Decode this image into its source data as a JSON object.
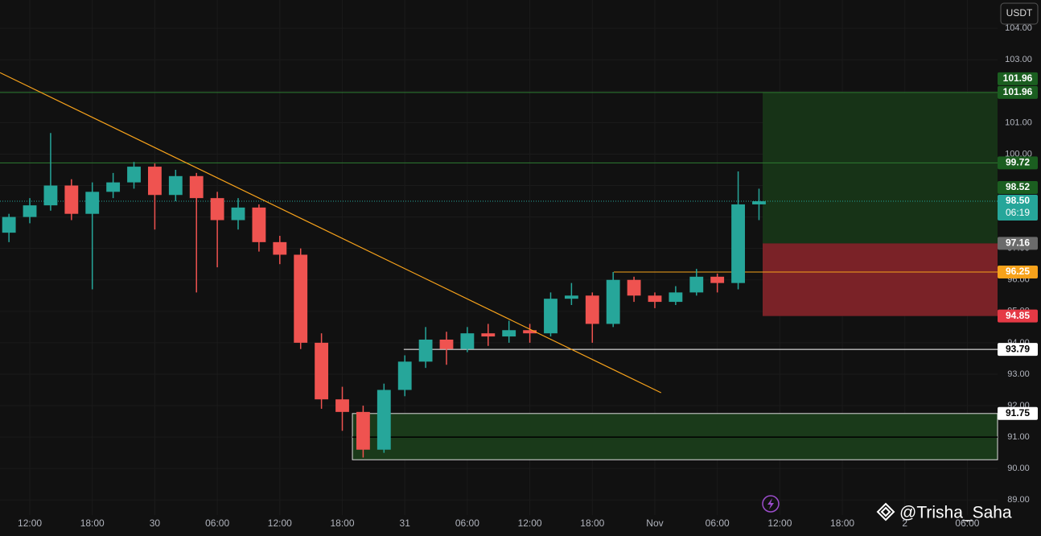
{
  "chart_data": {
    "type": "candlestick",
    "x": [
      -2,
      0,
      2,
      4,
      6,
      8,
      10,
      12,
      14,
      16,
      18,
      20,
      22,
      24,
      26,
      28,
      30,
      32,
      34,
      36,
      38,
      40,
      42,
      44,
      46,
      48,
      50,
      52,
      54,
      56,
      58,
      60,
      62,
      64,
      66,
      68,
      70
    ],
    "open": [
      97.5,
      98.0,
      98.37,
      99.0,
      98.1,
      98.8,
      99.1,
      99.6,
      98.7,
      99.3,
      98.6,
      97.9,
      98.3,
      97.2,
      96.8,
      94.0,
      92.2,
      91.8,
      90.6,
      92.5,
      93.4,
      94.1,
      93.8,
      94.3,
      94.2,
      94.4,
      94.3,
      95.4,
      95.5,
      94.6,
      96.0,
      95.5,
      95.3,
      95.6,
      96.1,
      95.9,
      98.4
    ],
    "high": [
      98.1,
      98.6,
      100.67,
      99.2,
      99.1,
      99.4,
      99.75,
      99.7,
      99.5,
      99.4,
      98.8,
      98.6,
      98.4,
      97.4,
      97.0,
      94.3,
      92.6,
      92.0,
      92.7,
      93.6,
      94.5,
      94.35,
      94.5,
      94.6,
      94.7,
      94.6,
      95.6,
      95.9,
      95.6,
      96.25,
      96.1,
      95.6,
      95.8,
      96.35,
      96.2,
      99.45,
      98.9
    ],
    "low": [
      97.2,
      97.8,
      98.2,
      97.9,
      95.7,
      98.6,
      98.9,
      97.6,
      98.5,
      95.6,
      96.4,
      97.6,
      96.9,
      96.5,
      93.8,
      91.9,
      91.2,
      90.35,
      90.5,
      92.3,
      93.2,
      93.3,
      93.7,
      93.9,
      94.0,
      94.0,
      94.2,
      95.2,
      94.0,
      94.5,
      95.3,
      95.1,
      95.2,
      95.5,
      95.6,
      95.7,
      97.9
    ],
    "close": [
      98.0,
      98.37,
      99.0,
      98.1,
      98.8,
      99.1,
      99.6,
      98.7,
      99.3,
      98.6,
      97.9,
      98.3,
      97.2,
      96.8,
      94.0,
      92.2,
      91.8,
      90.6,
      92.5,
      93.4,
      94.1,
      93.8,
      94.3,
      94.2,
      94.4,
      94.3,
      95.4,
      95.5,
      94.6,
      96.0,
      95.5,
      95.3,
      95.6,
      96.1,
      95.9,
      98.4,
      98.5
    ],
    "up_color": "#26a69a",
    "down_color": "#ef5350",
    "xlim": [
      -2.86,
      92.9
    ],
    "ylim": [
      88.52,
      104.9
    ],
    "xticks": [
      {
        "value": 0,
        "label": "12:00"
      },
      {
        "value": 6,
        "label": "18:00"
      },
      {
        "value": 12,
        "label": "30"
      },
      {
        "value": 18,
        "label": "06:00"
      },
      {
        "value": 24,
        "label": "12:00"
      },
      {
        "value": 30,
        "label": "18:00"
      },
      {
        "value": 36,
        "label": "31"
      },
      {
        "value": 42,
        "label": "06:00"
      },
      {
        "value": 48,
        "label": "12:00"
      },
      {
        "value": 54,
        "label": "18:00"
      },
      {
        "value": 60,
        "label": "Nov"
      },
      {
        "value": 66,
        "label": "06:00"
      },
      {
        "value": 72,
        "label": "12:00"
      },
      {
        "value": 78,
        "label": "18:00"
      },
      {
        "value": 84,
        "label": "2"
      },
      {
        "value": 90,
        "label": "06:00"
      }
    ],
    "yticks": [
      {
        "value": 89,
        "label": "89.00"
      },
      {
        "value": 90,
        "label": "90.00"
      },
      {
        "value": 91,
        "label": "91.00"
      },
      {
        "value": 92,
        "label": "92.00"
      },
      {
        "value": 93,
        "label": "93.00"
      },
      {
        "value": 94,
        "label": "94.00"
      },
      {
        "value": 95,
        "label": "95.00"
      },
      {
        "value": 96,
        "label": "96.00"
      },
      {
        "value": 97,
        "label": "97.00"
      },
      {
        "value": 98,
        "label": "98.00"
      },
      {
        "value": 99,
        "label": "99.00"
      },
      {
        "value": 100,
        "label": "100.00"
      },
      {
        "value": 101,
        "label": "101.00"
      },
      {
        "value": 102,
        "label": "102.00"
      },
      {
        "value": 103,
        "label": "103.00"
      },
      {
        "value": 104,
        "label": "104.00"
      }
    ],
    "grid": true,
    "currency": "USDT",
    "trendline": {
      "x": [
        -2.86,
        60.6
      ],
      "y": [
        102.59,
        92.41
      ],
      "color": "#f7a21b"
    },
    "levels": [
      {
        "value": 101.96,
        "from": -2.86,
        "color": "#2e7d32",
        "dashed": false
      },
      {
        "value": 99.72,
        "from": -2.86,
        "color": "#2e7d32",
        "dashed": false
      },
      {
        "value": 98.5,
        "from": -2.86,
        "color": "#26a69a",
        "dashed": true
      },
      {
        "value": 96.25,
        "from": 56.06,
        "color": "#f7a21b",
        "dashed": false
      },
      {
        "value": 93.79,
        "from": 35.9,
        "color": "#ffffff",
        "dashed": false
      }
    ],
    "zone": {
      "from": 30.97,
      "top": 91.75,
      "mid": 91.0,
      "bottom": 90.28,
      "color": "#1a3a1a"
    },
    "position": {
      "from": 70.35,
      "target": 101.96,
      "entry": 97.16,
      "stop": 94.85,
      "profit_color": "#173317",
      "loss_color": "#7a2227"
    },
    "price_labels": [
      {
        "value": 101.96,
        "label": "101.96",
        "color": "#1b5e20"
      },
      {
        "value": 101.96,
        "label": "101.96",
        "color": "#1b5e20"
      },
      {
        "value": 99.72,
        "label": "99.72",
        "color": "#1b5e20"
      },
      {
        "value": 98.5,
        "label": "98.50",
        "color": "#26a69a",
        "countdown": "06:19"
      },
      {
        "value": 98.52,
        "label": "98.52",
        "color": "#1b5e20"
      },
      {
        "value": 97.16,
        "label": "97.16",
        "color": "#6b6b6b"
      },
      {
        "value": 96.25,
        "label": "96.25",
        "color": "#f7a21b"
      },
      {
        "value": 94.85,
        "label": "94.85",
        "color": "#e53945"
      },
      {
        "value": 93.79,
        "label": "93.79",
        "color": "#ffffff"
      },
      {
        "value": 91.75,
        "label": "91.75",
        "color": "#ffffff"
      }
    ],
    "watermark": "@Trisha_Saha"
  }
}
